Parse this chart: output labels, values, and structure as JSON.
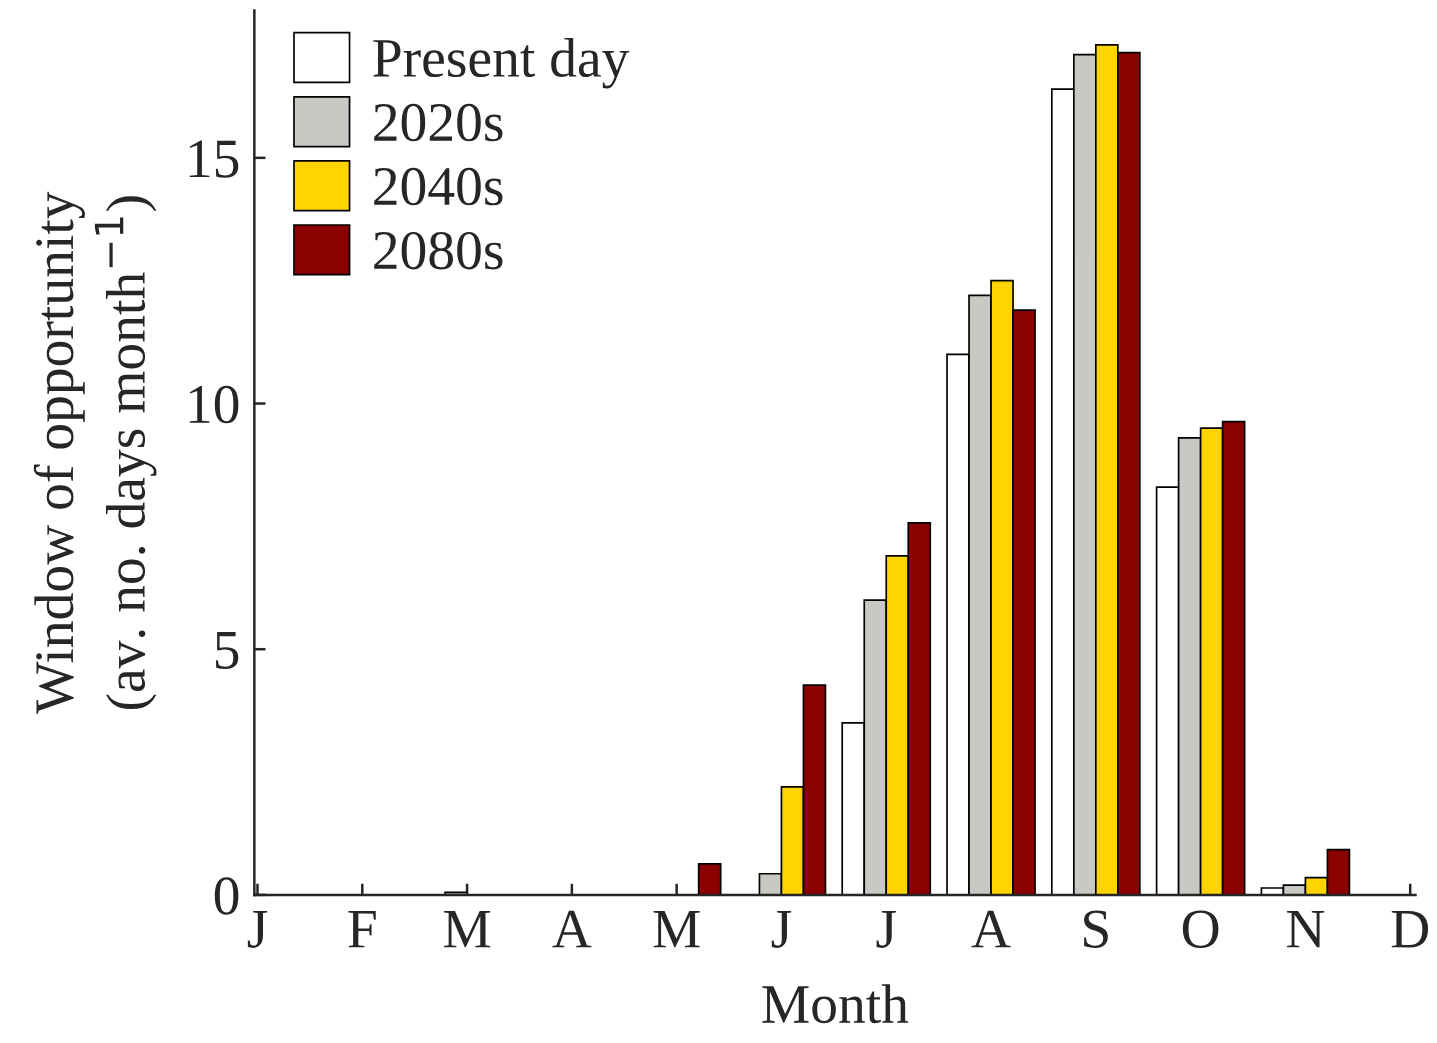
{
  "chart_data": {
    "type": "bar",
    "xlabel": "Month",
    "ylabel": "Window of opportunity\n(av. no. days month$^{−1}$)",
    "categories": [
      "J",
      "F",
      "M",
      "A",
      "M",
      "J",
      "J",
      "A",
      "S",
      "O",
      "N",
      "D"
    ],
    "series": [
      {
        "name": "Present day",
        "color": "#ffffff",
        "values": [
          0,
          0,
          0,
          0,
          0,
          0,
          3.5,
          11.0,
          16.4,
          8.3,
          0.14,
          0
        ]
      },
      {
        "name": "2020s",
        "color": "#c8c8c4",
        "values": [
          0,
          0,
          0.05,
          0,
          0,
          0.43,
          6.0,
          12.2,
          17.1,
          9.3,
          0.2,
          0
        ]
      },
      {
        "name": "2040s",
        "color": "#ffd400",
        "values": [
          0,
          0,
          0,
          0,
          0,
          2.2,
          6.9,
          12.5,
          17.3,
          9.5,
          0.35,
          0
        ]
      },
      {
        "name": "2080s",
        "color": "#8b0000",
        "values": [
          0,
          0,
          0,
          0,
          0.63,
          4.27,
          7.57,
          11.9,
          17.14,
          9.63,
          0.92,
          0
        ]
      }
    ],
    "ylim": [
      0,
      18
    ],
    "yticks": [
      0,
      5,
      10,
      15
    ],
    "grid": false,
    "legend": "top left"
  }
}
